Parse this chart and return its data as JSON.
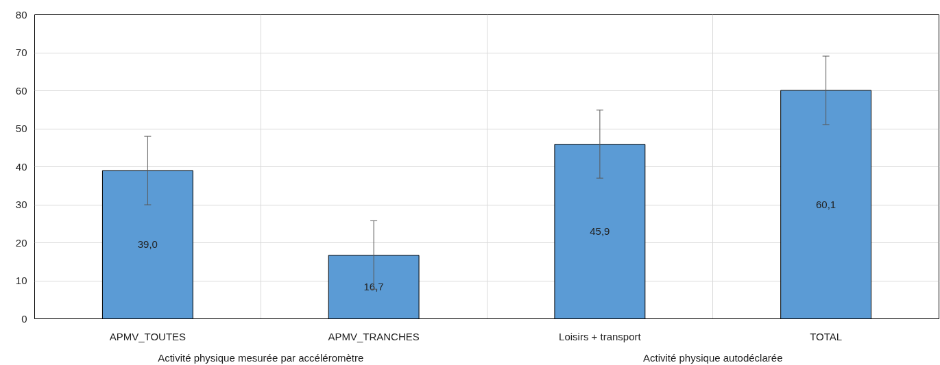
{
  "chart_data": {
    "type": "bar",
    "categories": [
      "APMV_TOUTES",
      "APMV_TRANCHES",
      "Loisirs + transport",
      "TOTAL"
    ],
    "values": [
      39.0,
      16.7,
      45.9,
      60.1
    ],
    "value_labels": [
      "39,0",
      "16,7",
      "45,9",
      "60,1"
    ],
    "errors": [
      [
        30,
        48
      ],
      [
        7.8,
        25.8
      ],
      [
        37,
        54.9
      ],
      [
        51.1,
        69.1
      ]
    ],
    "color": "#5b9bd5",
    "ylim": [
      0,
      80
    ],
    "yticks": [
      0,
      10,
      20,
      30,
      40,
      50,
      60,
      70,
      80
    ],
    "grid": true,
    "annotations": [
      "Activité physique mesurée par accéléromètre",
      "Activité physique autodéclarée"
    ]
  }
}
